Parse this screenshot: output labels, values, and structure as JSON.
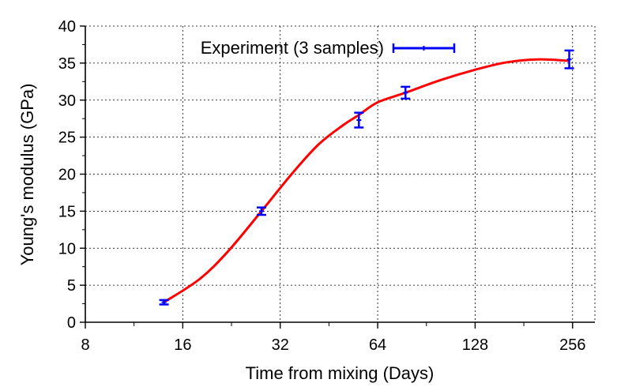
{
  "chart_data": {
    "type": "line",
    "title": "",
    "xlabel": "Time from mixing (Days)",
    "ylabel": "Young's modulus (GPa)",
    "x_scale": "log2",
    "xlim": [
      8,
      300
    ],
    "ylim": [
      0,
      40
    ],
    "x_ticks": [
      8,
      16,
      32,
      64,
      128,
      256
    ],
    "y_ticks": [
      0,
      5,
      10,
      15,
      20,
      25,
      30,
      35,
      40
    ],
    "grid": true,
    "legend_position": "top",
    "series": [
      {
        "name": "Experiment (3 samples)",
        "kind": "errorbar",
        "color": "#0000ff",
        "x": [
          14,
          28,
          56,
          78,
          250
        ],
        "y": [
          2.7,
          15.0,
          27.3,
          31.0,
          35.5
        ],
        "err": [
          0.3,
          0.5,
          1.0,
          0.8,
          1.2
        ]
      },
      {
        "kind": "curve",
        "color": "#ff0000",
        "x": [
          14,
          18,
          22,
          28,
          35,
          42,
          50,
          56,
          64,
          78,
          100,
          128,
          160,
          200,
          250
        ],
        "y": [
          2.7,
          5.8,
          9.5,
          15.0,
          20.2,
          24.0,
          26.6,
          28.0,
          29.7,
          31.0,
          32.7,
          34.1,
          35.1,
          35.5,
          35.3
        ]
      }
    ]
  }
}
